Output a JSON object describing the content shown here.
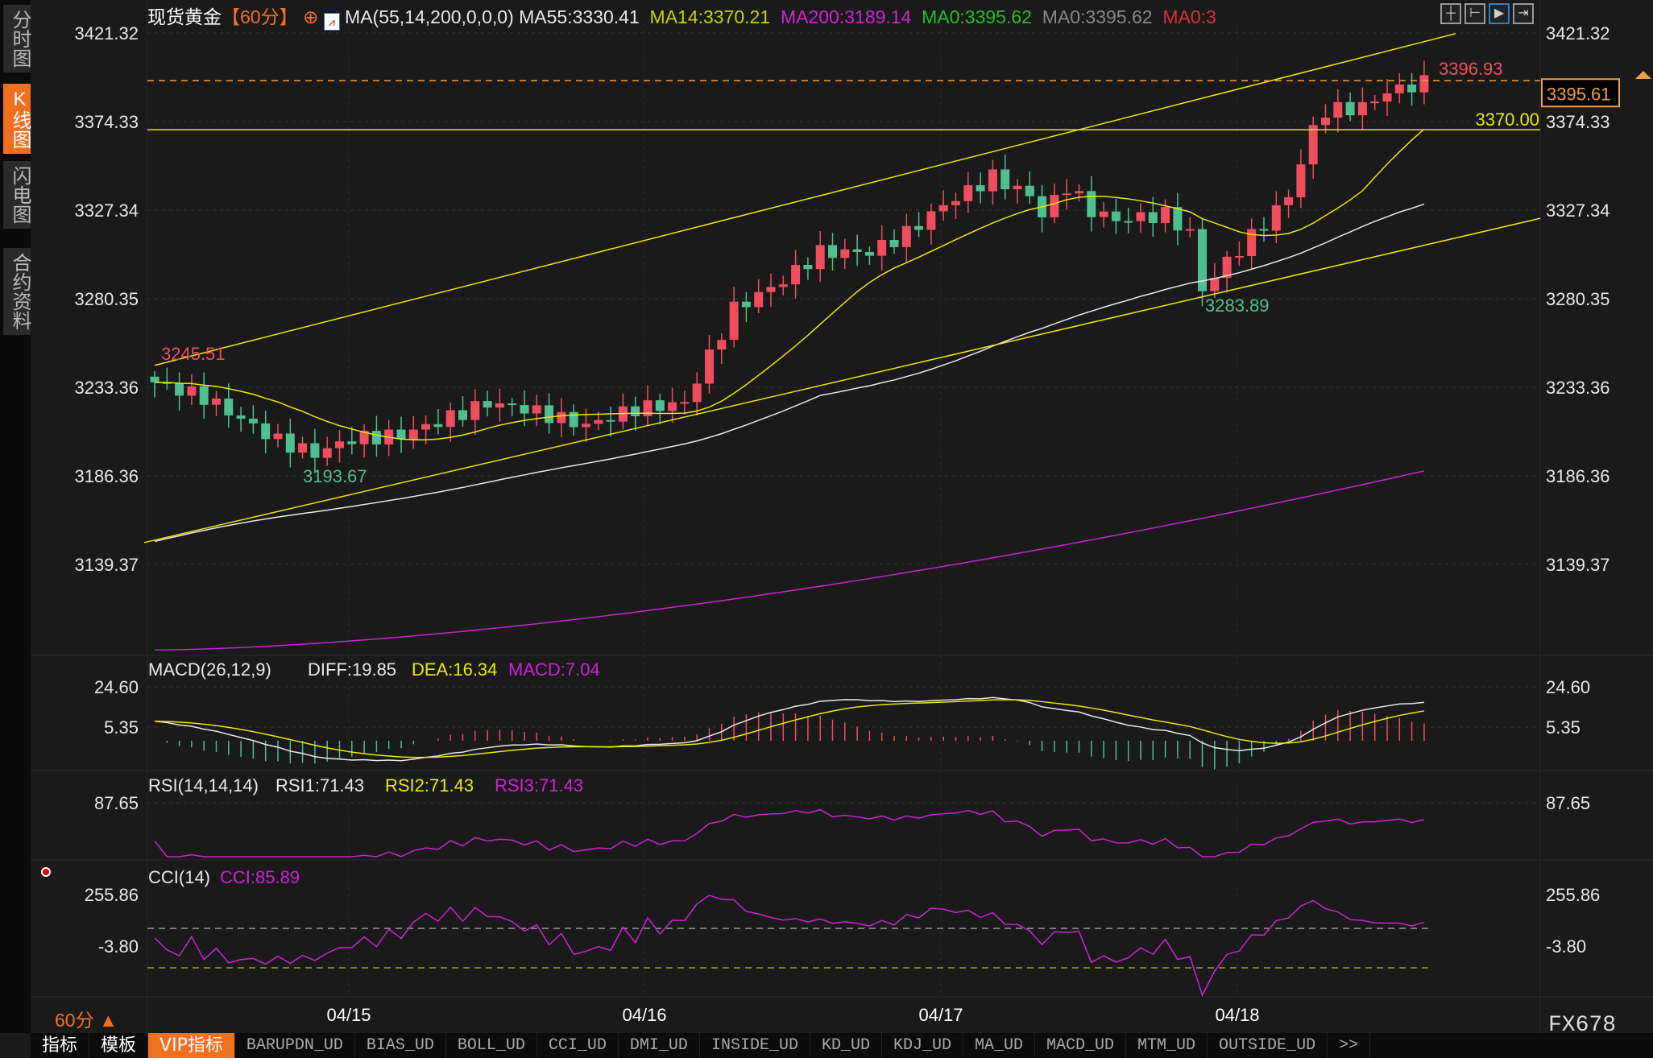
{
  "sidebar": {
    "tabs": [
      {
        "label": "分时图",
        "active": false
      },
      {
        "label": "K线图",
        "active": true
      },
      {
        "label": "闪电图",
        "active": false
      },
      {
        "label": "合约资料",
        "active": false
      }
    ]
  },
  "header": {
    "symbol": "现货黄金",
    "period": "【60分】",
    "ma_params": "MA(55,14,200,0,0,0)",
    "ma55": "MA55:3330.41",
    "ma14": "MA14:3370.21",
    "ma200": "MA200:3189.14",
    "ma0a": "MA0:3395.62",
    "ma0b": "MA0:3395.62",
    "ma0c": "MA0:3",
    "toolbar_icons": [
      "crosshair-icon",
      "range-icon",
      "draw-icon",
      "forward-icon"
    ]
  },
  "price_axis": [
    "3421.32",
    "3374.33",
    "3327.34",
    "3280.35",
    "3233.36",
    "3186.36",
    "3139.37"
  ],
  "annotations": {
    "high_start": "3245.51",
    "low1": "3193.67",
    "low2": "3283.89",
    "high_end": "3396.93",
    "level": "3370.00",
    "current": "3395.61"
  },
  "macd": {
    "title": "MACD(26,12,9)",
    "diff": "DIFF:19.85",
    "dea": "DEA:16.34",
    "macd": "MACD:7.04",
    "axis": [
      "24.60",
      "5.35"
    ]
  },
  "rsi": {
    "title": "RSI(14,14,14)",
    "rsi1": "RSI1:71.43",
    "rsi2": "RSI2:71.43",
    "rsi3": "RSI3:71.43",
    "axis": [
      "87.65"
    ]
  },
  "cci": {
    "title": "CCI(14)",
    "cci": "CCI:85.89",
    "axis": [
      "255.86",
      "-3.80"
    ]
  },
  "dates": [
    "04/15",
    "04/16",
    "04/17",
    "04/18"
  ],
  "period_select": "60分 ▲",
  "brand": "FX678",
  "bottom_tabs": [
    {
      "label": "指标"
    },
    {
      "label": "模板"
    },
    {
      "label": "VIP指标",
      "active": true
    },
    {
      "label": "BARUPDN_UD"
    },
    {
      "label": "BIAS_UD"
    },
    {
      "label": "BOLL_UD"
    },
    {
      "label": "CCI_UD"
    },
    {
      "label": "DMI_UD"
    },
    {
      "label": "INSIDE_UD"
    },
    {
      "label": "KD_UD"
    },
    {
      "label": "KDJ_UD"
    },
    {
      "label": "MA_UD"
    },
    {
      "label": "MACD_UD"
    },
    {
      "label": "MTM_UD"
    },
    {
      "label": "OUTSIDE_UD"
    },
    {
      "label": ">>"
    }
  ],
  "colors": {
    "up": "#f04e5e",
    "down": "#4fbf8f",
    "ma14": "#e8e800",
    "ma55": "#e8e8e8",
    "ma200": "#d020d8",
    "accent": "#f07020"
  },
  "price_anchors": [
    [
      0,
      3236
    ],
    [
      4,
      3228
    ],
    [
      10,
      3205
    ],
    [
      13,
      3198
    ],
    [
      16,
      3206
    ],
    [
      20,
      3208
    ],
    [
      23,
      3215
    ],
    [
      27,
      3225
    ],
    [
      30,
      3222
    ],
    [
      35,
      3213
    ],
    [
      39,
      3222
    ],
    [
      43,
      3225
    ],
    [
      45,
      3250
    ],
    [
      47,
      3275
    ],
    [
      51,
      3290
    ],
    [
      54,
      3305
    ],
    [
      58,
      3305
    ],
    [
      61,
      3315
    ],
    [
      64,
      3330
    ],
    [
      68,
      3345
    ],
    [
      71,
      3335
    ],
    [
      72,
      3325
    ],
    [
      74,
      3340
    ],
    [
      76,
      3327
    ],
    [
      78,
      3322
    ],
    [
      82,
      3325
    ],
    [
      84,
      3315
    ],
    [
      85,
      3285
    ],
    [
      87,
      3300
    ],
    [
      90,
      3320
    ],
    [
      92,
      3335
    ],
    [
      94,
      3370
    ],
    [
      95,
      3380
    ],
    [
      98,
      3382
    ],
    [
      100,
      3390
    ],
    [
      103,
      3395
    ]
  ]
}
